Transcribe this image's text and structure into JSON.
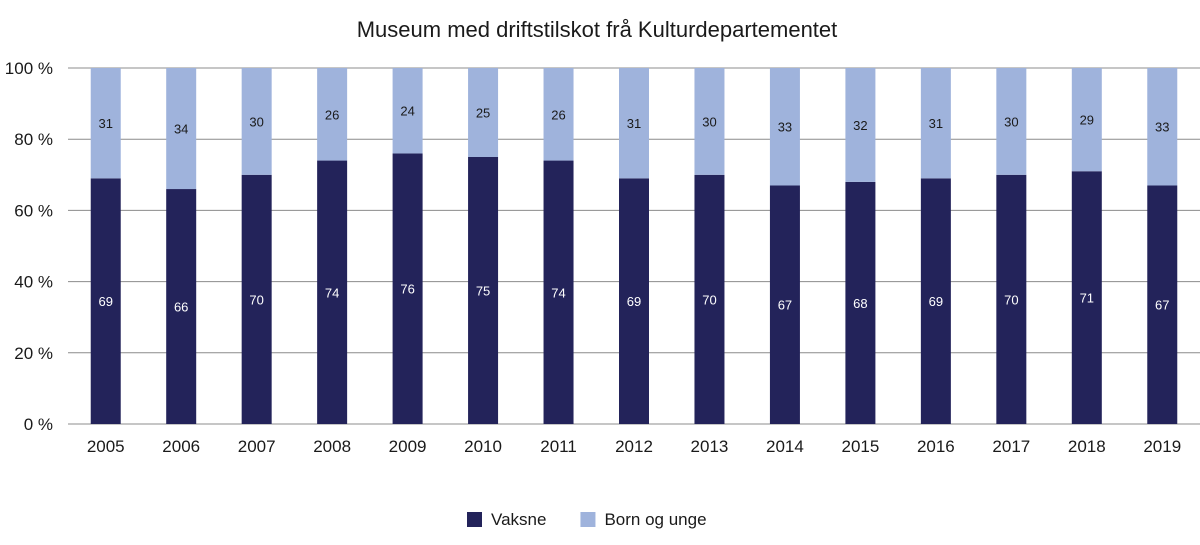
{
  "chart_data": {
    "type": "bar",
    "stacked": true,
    "title": "Museum med driftstilskot frå Kulturdepartementet",
    "xlabel": "",
    "ylabel": "",
    "ylim": [
      0,
      100
    ],
    "yticks": [
      0,
      20,
      40,
      60,
      80,
      100
    ],
    "ytick_suffix": " %",
    "grid": true,
    "legend_position": "bottom",
    "categories": [
      "2005",
      "2006",
      "2007",
      "2008",
      "2009",
      "2010",
      "2011",
      "2012",
      "2013",
      "2014",
      "2015",
      "2016",
      "2017",
      "2018",
      "2019"
    ],
    "series": [
      {
        "name": "Vaksne",
        "color": "#23235a",
        "label_color": "#ffffff",
        "values": [
          69,
          66,
          70,
          74,
          76,
          75,
          74,
          69,
          70,
          67,
          68,
          69,
          70,
          71,
          67
        ]
      },
      {
        "name": "Born og unge",
        "color": "#9fb3dc",
        "label_color": "#1a1a1a",
        "values": [
          31,
          34,
          30,
          26,
          24,
          25,
          26,
          31,
          30,
          33,
          32,
          31,
          30,
          29,
          33
        ]
      }
    ]
  }
}
